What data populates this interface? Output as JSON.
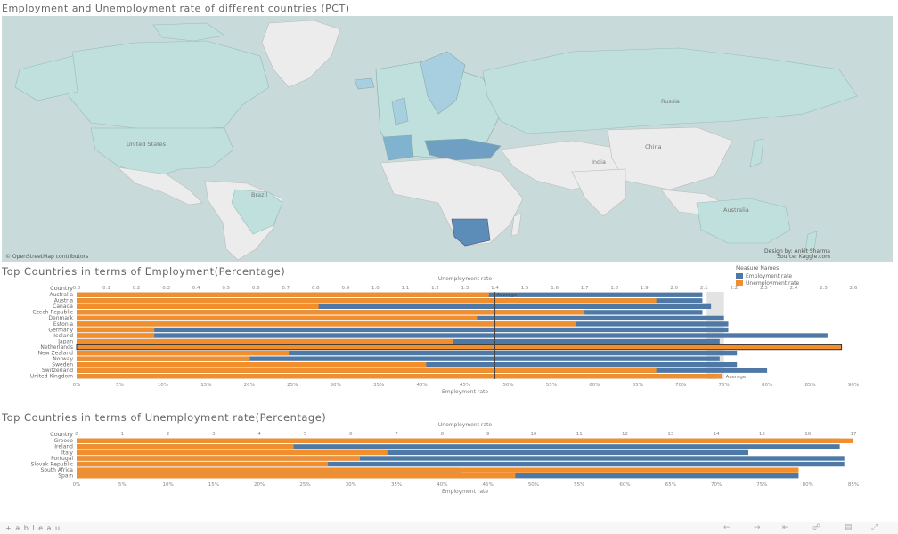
{
  "map": {
    "title": "Employment and Unemployment rate of different countries (PCT)",
    "osm_credit": "© OpenStreetMap contributors",
    "design_credit": "Design by: Ankit Sharma",
    "source_credit": "Source: Kaggle.com",
    "labels": {
      "united_states": "United States",
      "russia": "Russia",
      "china": "China",
      "india": "India",
      "brazil": "Brazil",
      "australia": "Australia"
    },
    "colors": {
      "ocean": "#c8dad9",
      "land": "#ececec",
      "highlight": "#bfe0dc",
      "europe": "#7fb3cf",
      "south_africa": "#5b8db8"
    }
  },
  "legend": {
    "title": "Measure Names",
    "items": [
      {
        "label": "Employment rate",
        "color": "#4e79a7"
      },
      {
        "label": "Unemployment rate",
        "color": "#f28e2b"
      }
    ]
  },
  "chart_data": [
    {
      "type": "bar",
      "title": "Top Countries in terms of Employment(Percentage)",
      "header": "Country",
      "top_axis_label": "Unemployment rate",
      "bottom_axis_label": "Employment rate",
      "top_ticks": [
        "0.0",
        "0.1",
        "0.2",
        "0.3",
        "0.4",
        "0.5",
        "0.6",
        "0.7",
        "0.8",
        "0.9",
        "1.0",
        "1.1",
        "1.2",
        "1.3",
        "1.4",
        "1.5",
        "1.6",
        "1.7",
        "1.8",
        "1.9",
        "2.0",
        "2.1",
        "2.2",
        "2.3",
        "2.4",
        "2.5",
        "2.6"
      ],
      "bottom_ticks": [
        "0%",
        "5%",
        "10%",
        "15%",
        "20%",
        "25%",
        "30%",
        "35%",
        "40%",
        "45%",
        "50%",
        "55%",
        "60%",
        "65%",
        "70%",
        "75%",
        "80%",
        "85%",
        "90%"
      ],
      "reference_line": {
        "axis": "top",
        "value": 1.4,
        "label": "Average"
      },
      "reference_band": {
        "axis": "bottom",
        "from": 73,
        "to": 75,
        "label": "Average"
      },
      "highlighted_row": "Netherlands",
      "categories": [
        "Australia",
        "Austria",
        "Canada",
        "Czech Republic",
        "Denmark",
        "Estonia",
        "Germany",
        "Iceland",
        "Japan",
        "Netherlands",
        "New Zealand",
        "Norway",
        "Sweden",
        "Switzerland",
        "United Kingdom"
      ],
      "series": [
        {
          "name": "Employment rate",
          "axis": "bottom",
          "values": [
            72.5,
            72.5,
            73.5,
            72.5,
            75,
            75.5,
            75.5,
            87,
            74.5,
            76.5,
            76.5,
            74.5,
            76.5,
            80,
            74
          ]
        },
        {
          "name": "Unemployment rate",
          "axis": "top",
          "values": [
            1.38,
            1.94,
            0.81,
            1.7,
            1.34,
            1.67,
            0.26,
            0.26,
            1.26,
            2.56,
            0.71,
            0.58,
            1.17,
            1.94,
            2.16
          ]
        }
      ],
      "ylim_top": [
        0,
        2.6
      ],
      "xlim_bottom": [
        0,
        90
      ]
    },
    {
      "type": "bar",
      "title": "Top Countries in terms of Unemployment rate(Percentage)",
      "header": "Country",
      "top_axis_label": "Unemployment rate",
      "bottom_axis_label": "Employment rate",
      "top_ticks": [
        "0",
        "1",
        "2",
        "3",
        "4",
        "5",
        "6",
        "7",
        "8",
        "9",
        "10",
        "11",
        "12",
        "13",
        "14",
        "15",
        "16",
        "17"
      ],
      "bottom_ticks": [
        "0%",
        "5%",
        "10%",
        "15%",
        "20%",
        "25%",
        "30%",
        "35%",
        "40%",
        "45%",
        "50%",
        "55%",
        "60%",
        "65%",
        "70%",
        "75%",
        "80%",
        "85%"
      ],
      "categories": [
        "Greece",
        "Ireland",
        "Italy",
        "Portugal",
        "Slovak Republic",
        "South Africa",
        "Spain"
      ],
      "series": [
        {
          "name": "Employment rate",
          "axis": "bottom",
          "values": [
            83.5,
            83.5,
            73.5,
            84,
            84,
            42,
            79
          ]
        },
        {
          "name": "Unemployment rate",
          "axis": "top",
          "values": [
            17,
            4.75,
            6.8,
            6.2,
            5.5,
            15.8,
            9.6
          ]
        }
      ],
      "ylim_top": [
        0,
        17
      ],
      "xlim_bottom": [
        0,
        85
      ]
    }
  ],
  "footer": {
    "brand": "+ a b l e a u",
    "icons": [
      "undo-icon",
      "redo-icon",
      "revert-icon",
      "share-icon",
      "download-icon",
      "fullscreen-icon"
    ]
  }
}
